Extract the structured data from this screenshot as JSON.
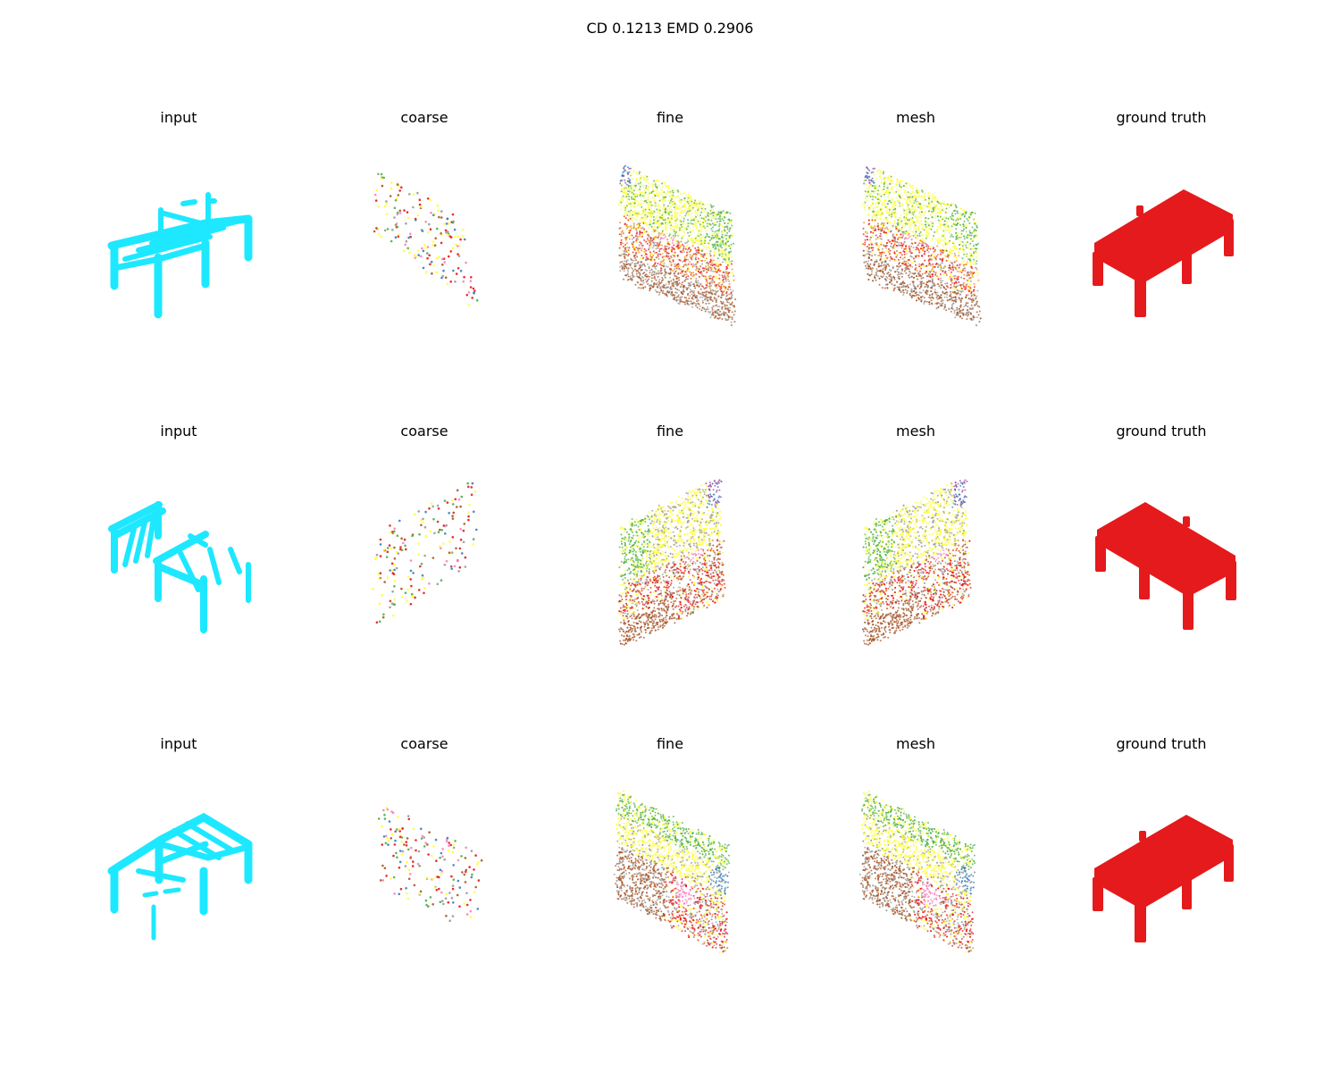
{
  "title": "CD 0.1213  EMD 0.2906",
  "columns": [
    "input",
    "coarse",
    "fine",
    "mesh",
    "ground truth"
  ],
  "rows": [
    [
      "input",
      "coarse",
      "fine",
      "mesh",
      "ground truth"
    ],
    [
      "input",
      "coarse",
      "fine",
      "mesh",
      "ground truth"
    ],
    [
      "input",
      "coarse",
      "fine",
      "mesh",
      "ground truth"
    ]
  ],
  "colors": {
    "input": "#1ee8ff",
    "ground_truth": "#e41a1c",
    "parts": [
      "#e41a1c",
      "#ffff33",
      "#4daf4a",
      "#a65628",
      "#999999",
      "#f781bf",
      "#377eb8",
      "#984ea3",
      "#ff7f00"
    ]
  }
}
